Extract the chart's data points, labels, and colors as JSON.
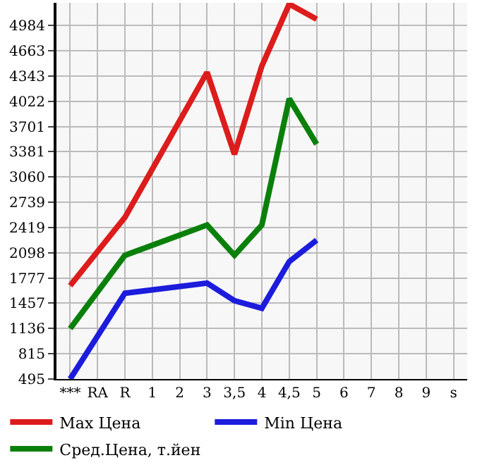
{
  "chart_data": {
    "type": "line",
    "categories": [
      "***",
      "RA",
      "R",
      "1",
      "2",
      "3",
      "3,5",
      "4",
      "4,5",
      "5",
      "6",
      "7",
      "8",
      "9",
      "s"
    ],
    "series": [
      {
        "name": "Max Цена",
        "color": "#dd1c1c",
        "values": [
          1681,
          null,
          2547,
          null,
          null,
          4390,
          3348,
          4470,
          5256,
          5064,
          null,
          null,
          null,
          null,
          null
        ]
      },
      {
        "name": "Min Цена",
        "color": "#1c1cdd",
        "values": [
          495,
          null,
          1585,
          null,
          null,
          1713,
          1489,
          1393,
          1986,
          2258,
          null,
          null,
          null,
          null,
          null
        ]
      },
      {
        "name": "Сред.Цена, т.йен",
        "color": "#0a800a",
        "values": [
          1136,
          null,
          2066,
          null,
          null,
          2451,
          2066,
          2451,
          4054,
          3477,
          null,
          null,
          null,
          null,
          null
        ]
      }
    ],
    "ylim": [
      495,
      5272
    ],
    "yticks": [
      495,
      815,
      1136,
      1457,
      1777,
      2098,
      2419,
      2739,
      3060,
      3381,
      3701,
      4022,
      4343,
      4663,
      4984
    ],
    "grid": true,
    "legend": "bottom",
    "marker": "none",
    "line_style": "solid"
  }
}
